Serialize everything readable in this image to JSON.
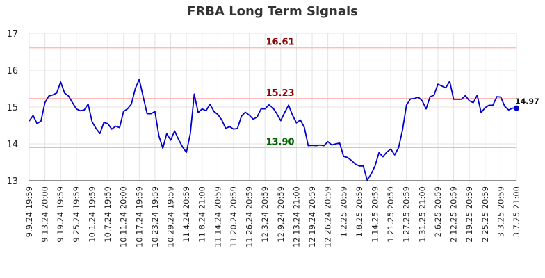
{
  "chart_data": {
    "type": "line",
    "title": "FRBA Long Term Signals",
    "xlabel": "",
    "ylabel": "",
    "ylim": [
      13,
      17
    ],
    "yticks": [
      13,
      14,
      15,
      16,
      17
    ],
    "grid": true,
    "x_tick_labels": [
      "9.9.24 19:59",
      "9.13.24 20:00",
      "9.19.24 19:59",
      "9.25.24 19:59",
      "10.1.24 19:59",
      "10.7.24 19:59",
      "10.11.24 20:00",
      "10.17.24 19:59",
      "10.23.24 19:59",
      "10.29.24 19:59",
      "11.4.24 20:59",
      "11.8.24 21:00",
      "11.14.24 20:59",
      "11.20.24 20:59",
      "11.26.24 20:59",
      "12.3.24 20:59",
      "12.9.24 20:59",
      "12.13.24 21:00",
      "12.19.24 20:59",
      "12.26.24 20:59",
      "1.2.25 20:59",
      "1.8.25 20:59",
      "1.14.25 20:59",
      "1.21.25 20:59",
      "1.27.25 20:59",
      "1.31.25 21:00",
      "2.6.25 20:59",
      "2.12.25 20:59",
      "2.19.25 20:59",
      "2.25.25 20:59",
      "3.3.25 20:59",
      "3.7.25 21:00"
    ],
    "reference_lines": [
      {
        "value": 16.61,
        "label": "16.61",
        "color": "#ffbbbb",
        "label_color": "#8b0000"
      },
      {
        "value": 15.23,
        "label": "15.23",
        "color": "#ffbbbb",
        "label_color": "#8b0000"
      },
      {
        "value": 13.9,
        "label": "13.90",
        "color": "#90ee90",
        "label_color": "#006400"
      }
    ],
    "series": [
      {
        "color": "#0000cc",
        "values": [
          14.62,
          14.77,
          14.55,
          14.62,
          15.12,
          15.3,
          15.33,
          15.38,
          15.68,
          15.38,
          15.3,
          15.12,
          14.95,
          14.9,
          14.92,
          15.08,
          14.6,
          14.42,
          14.28,
          14.58,
          14.55,
          14.4,
          14.48,
          14.44,
          14.88,
          14.95,
          15.08,
          15.5,
          15.75,
          15.28,
          14.82,
          14.82,
          14.88,
          14.22,
          13.88,
          14.28,
          14.1,
          14.35,
          14.12,
          13.92,
          13.77,
          14.28,
          15.35,
          14.85,
          14.95,
          14.9,
          15.08,
          14.88,
          14.8,
          14.65,
          14.42,
          14.47,
          14.4,
          14.42,
          14.75,
          14.86,
          14.78,
          14.67,
          14.73,
          14.95,
          14.95,
          15.06,
          14.98,
          14.82,
          14.63,
          14.85,
          15.05,
          14.78,
          14.57,
          14.65,
          14.45,
          13.95,
          13.96,
          13.95,
          13.97,
          13.95,
          14.06,
          13.97,
          14.0,
          14.02,
          13.66,
          13.63,
          13.55,
          13.45,
          13.4,
          13.4,
          13.02,
          13.18,
          13.4,
          13.76,
          13.65,
          13.78,
          13.86,
          13.7,
          13.9,
          14.38,
          15.05,
          15.22,
          15.23,
          15.27,
          15.17,
          14.95,
          15.28,
          15.32,
          15.62,
          15.57,
          15.52,
          15.7,
          15.21,
          15.21,
          15.21,
          15.31,
          15.17,
          15.12,
          15.32,
          14.85,
          14.98,
          15.05,
          15.05,
          15.28,
          15.27,
          15.02,
          14.92,
          14.97,
          14.97
        ],
        "last_value_label": "14.97"
      }
    ]
  }
}
